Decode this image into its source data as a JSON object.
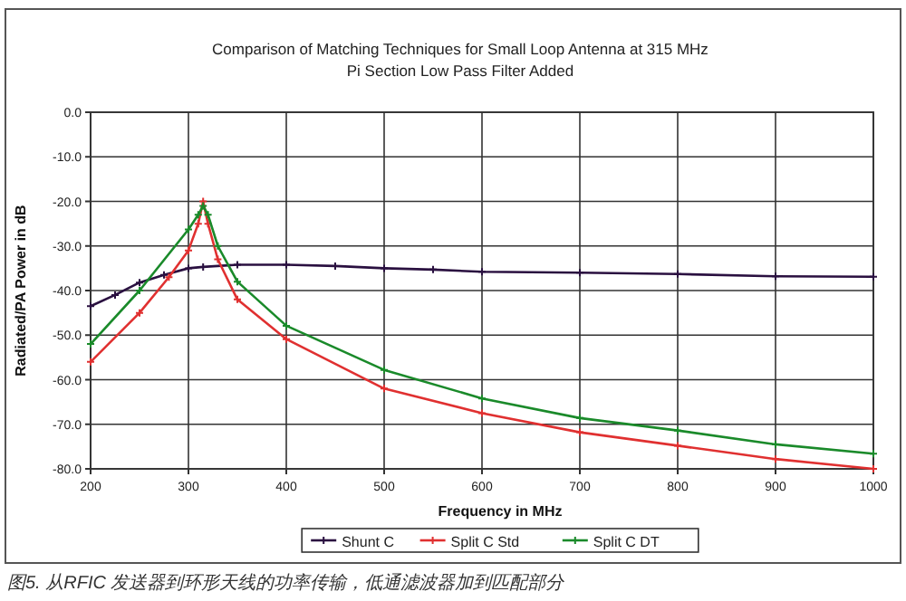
{
  "chart_data": {
    "type": "line",
    "title": "Comparison of Matching Techniques for Small Loop Antenna at 315 MHz",
    "subtitle": "Pi Section Low Pass Filter Added",
    "xlabel": "Frequency in MHz",
    "ylabel": "Radiated/PA Power in dB",
    "annotations": [
      "图5. 从RFIC 发送器到环形天线的功率传输，低通滤波器加到匹配部分"
    ],
    "xlim": [
      200,
      1000
    ],
    "xticks": [
      200,
      300,
      400,
      500,
      600,
      700,
      800,
      900,
      1000
    ],
    "ylim": [
      -80,
      0
    ],
    "yticks": [
      {
        "value": -80,
        "label": "-80.0"
      },
      {
        "value": -70,
        "label": "-70.0"
      },
      {
        "value": -60,
        "label": "-60.0"
      },
      {
        "value": -50,
        "label": "-50.0"
      },
      {
        "value": -40,
        "label": "-40.0"
      },
      {
        "value": -30,
        "label": "-30.0"
      },
      {
        "value": -20,
        "label": "-20.0"
      },
      {
        "value": -10,
        "label": "-10.0"
      },
      {
        "value": 0,
        "label": "0.0"
      }
    ],
    "grid": true,
    "legend": "bottom",
    "marker": "cross",
    "line_style": "solid",
    "series": [
      {
        "name": "Shunt C",
        "color": "#2a1040",
        "x": [
          200,
          225,
          250,
          275,
          300,
          315,
          350,
          400,
          450,
          500,
          550,
          600,
          700,
          800,
          900,
          1000
        ],
        "values": [
          -43.5,
          -41,
          -38.2,
          -36.5,
          -35,
          -34.7,
          -34.2,
          -34.2,
          -34.5,
          -35,
          -35.3,
          -35.8,
          -36,
          -36.3,
          -36.8,
          -36.9
        ]
      },
      {
        "name": "Split C Std",
        "color": "#e03030",
        "x": [
          200,
          250,
          280,
          300,
          310,
          315,
          320,
          330,
          350,
          400,
          500,
          600,
          700,
          800,
          900,
          1000
        ],
        "values": [
          -56,
          -45,
          -37,
          -31,
          -25,
          -20,
          -25,
          -33,
          -42,
          -50.9,
          -62,
          -67.5,
          -71.8,
          -74.8,
          -77.8,
          -80
        ]
      },
      {
        "name": "Split C DT",
        "color": "#1a8a2a",
        "x": [
          200,
          250,
          300,
          310,
          315,
          320,
          330,
          350,
          400,
          500,
          600,
          700,
          800,
          900,
          1000
        ],
        "values": [
          -52,
          -40,
          -26.3,
          -23,
          -21,
          -23,
          -30,
          -38,
          -47.9,
          -57.8,
          -64.2,
          -68.6,
          -71.4,
          -74.5,
          -76.6
        ]
      }
    ]
  }
}
